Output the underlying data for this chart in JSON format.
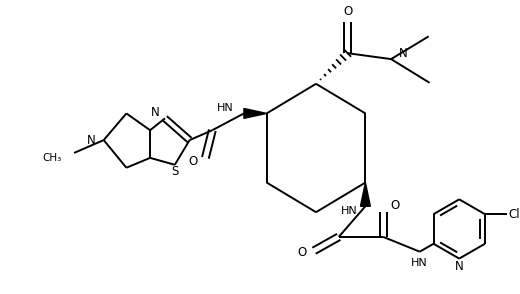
{
  "figsize": [
    5.2,
    2.94
  ],
  "dpi": 100,
  "xlim": [
    0,
    520
  ],
  "ylim": [
    0,
    294
  ],
  "bg": "#ffffff"
}
